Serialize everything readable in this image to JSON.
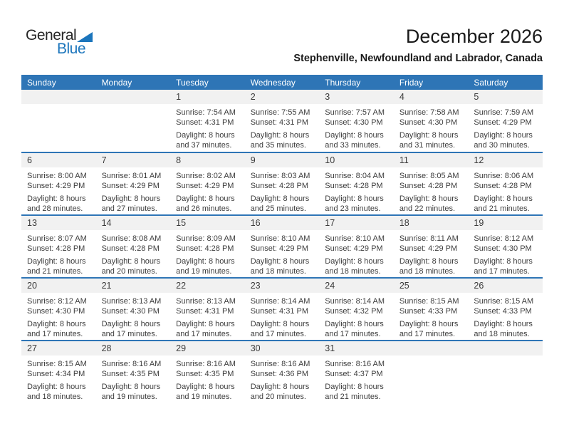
{
  "logo": {
    "line1": "General",
    "line2": "Blue"
  },
  "header": {
    "title": "December 2026",
    "subtitle": "Stephenville, Newfoundland and Labrador, Canada"
  },
  "colors": {
    "header_blue": "#2E75B6",
    "divider_blue": "#2E75B6",
    "band_gray": "#F1F1F1",
    "logo_blue": "#1B75BC",
    "text_dark": "#3d3d3d"
  },
  "calendar": {
    "weekdays": [
      "Sunday",
      "Monday",
      "Tuesday",
      "Wednesday",
      "Thursday",
      "Friday",
      "Saturday"
    ],
    "weeks": [
      {
        "cells": [
          null,
          null,
          {
            "day": "1",
            "sunrise": "Sunrise: 7:54 AM",
            "sunset": "Sunset: 4:31 PM",
            "daylight1": "Daylight: 8 hours",
            "daylight2": "and 37 minutes."
          },
          {
            "day": "2",
            "sunrise": "Sunrise: 7:55 AM",
            "sunset": "Sunset: 4:31 PM",
            "daylight1": "Daylight: 8 hours",
            "daylight2": "and 35 minutes."
          },
          {
            "day": "3",
            "sunrise": "Sunrise: 7:57 AM",
            "sunset": "Sunset: 4:30 PM",
            "daylight1": "Daylight: 8 hours",
            "daylight2": "and 33 minutes."
          },
          {
            "day": "4",
            "sunrise": "Sunrise: 7:58 AM",
            "sunset": "Sunset: 4:30 PM",
            "daylight1": "Daylight: 8 hours",
            "daylight2": "and 31 minutes."
          },
          {
            "day": "5",
            "sunrise": "Sunrise: 7:59 AM",
            "sunset": "Sunset: 4:29 PM",
            "daylight1": "Daylight: 8 hours",
            "daylight2": "and 30 minutes."
          }
        ]
      },
      {
        "cells": [
          {
            "day": "6",
            "sunrise": "Sunrise: 8:00 AM",
            "sunset": "Sunset: 4:29 PM",
            "daylight1": "Daylight: 8 hours",
            "daylight2": "and 28 minutes."
          },
          {
            "day": "7",
            "sunrise": "Sunrise: 8:01 AM",
            "sunset": "Sunset: 4:29 PM",
            "daylight1": "Daylight: 8 hours",
            "daylight2": "and 27 minutes."
          },
          {
            "day": "8",
            "sunrise": "Sunrise: 8:02 AM",
            "sunset": "Sunset: 4:29 PM",
            "daylight1": "Daylight: 8 hours",
            "daylight2": "and 26 minutes."
          },
          {
            "day": "9",
            "sunrise": "Sunrise: 8:03 AM",
            "sunset": "Sunset: 4:28 PM",
            "daylight1": "Daylight: 8 hours",
            "daylight2": "and 25 minutes."
          },
          {
            "day": "10",
            "sunrise": "Sunrise: 8:04 AM",
            "sunset": "Sunset: 4:28 PM",
            "daylight1": "Daylight: 8 hours",
            "daylight2": "and 23 minutes."
          },
          {
            "day": "11",
            "sunrise": "Sunrise: 8:05 AM",
            "sunset": "Sunset: 4:28 PM",
            "daylight1": "Daylight: 8 hours",
            "daylight2": "and 22 minutes."
          },
          {
            "day": "12",
            "sunrise": "Sunrise: 8:06 AM",
            "sunset": "Sunset: 4:28 PM",
            "daylight1": "Daylight: 8 hours",
            "daylight2": "and 21 minutes."
          }
        ]
      },
      {
        "cells": [
          {
            "day": "13",
            "sunrise": "Sunrise: 8:07 AM",
            "sunset": "Sunset: 4:28 PM",
            "daylight1": "Daylight: 8 hours",
            "daylight2": "and 21 minutes."
          },
          {
            "day": "14",
            "sunrise": "Sunrise: 8:08 AM",
            "sunset": "Sunset: 4:28 PM",
            "daylight1": "Daylight: 8 hours",
            "daylight2": "and 20 minutes."
          },
          {
            "day": "15",
            "sunrise": "Sunrise: 8:09 AM",
            "sunset": "Sunset: 4:28 PM",
            "daylight1": "Daylight: 8 hours",
            "daylight2": "and 19 minutes."
          },
          {
            "day": "16",
            "sunrise": "Sunrise: 8:10 AM",
            "sunset": "Sunset: 4:29 PM",
            "daylight1": "Daylight: 8 hours",
            "daylight2": "and 18 minutes."
          },
          {
            "day": "17",
            "sunrise": "Sunrise: 8:10 AM",
            "sunset": "Sunset: 4:29 PM",
            "daylight1": "Daylight: 8 hours",
            "daylight2": "and 18 minutes."
          },
          {
            "day": "18",
            "sunrise": "Sunrise: 8:11 AM",
            "sunset": "Sunset: 4:29 PM",
            "daylight1": "Daylight: 8 hours",
            "daylight2": "and 18 minutes."
          },
          {
            "day": "19",
            "sunrise": "Sunrise: 8:12 AM",
            "sunset": "Sunset: 4:30 PM",
            "daylight1": "Daylight: 8 hours",
            "daylight2": "and 17 minutes."
          }
        ]
      },
      {
        "cells": [
          {
            "day": "20",
            "sunrise": "Sunrise: 8:12 AM",
            "sunset": "Sunset: 4:30 PM",
            "daylight1": "Daylight: 8 hours",
            "daylight2": "and 17 minutes."
          },
          {
            "day": "21",
            "sunrise": "Sunrise: 8:13 AM",
            "sunset": "Sunset: 4:30 PM",
            "daylight1": "Daylight: 8 hours",
            "daylight2": "and 17 minutes."
          },
          {
            "day": "22",
            "sunrise": "Sunrise: 8:13 AM",
            "sunset": "Sunset: 4:31 PM",
            "daylight1": "Daylight: 8 hours",
            "daylight2": "and 17 minutes."
          },
          {
            "day": "23",
            "sunrise": "Sunrise: 8:14 AM",
            "sunset": "Sunset: 4:31 PM",
            "daylight1": "Daylight: 8 hours",
            "daylight2": "and 17 minutes."
          },
          {
            "day": "24",
            "sunrise": "Sunrise: 8:14 AM",
            "sunset": "Sunset: 4:32 PM",
            "daylight1": "Daylight: 8 hours",
            "daylight2": "and 17 minutes."
          },
          {
            "day": "25",
            "sunrise": "Sunrise: 8:15 AM",
            "sunset": "Sunset: 4:33 PM",
            "daylight1": "Daylight: 8 hours",
            "daylight2": "and 17 minutes."
          },
          {
            "day": "26",
            "sunrise": "Sunrise: 8:15 AM",
            "sunset": "Sunset: 4:33 PM",
            "daylight1": "Daylight: 8 hours",
            "daylight2": "and 18 minutes."
          }
        ]
      },
      {
        "cells": [
          {
            "day": "27",
            "sunrise": "Sunrise: 8:15 AM",
            "sunset": "Sunset: 4:34 PM",
            "daylight1": "Daylight: 8 hours",
            "daylight2": "and 18 minutes."
          },
          {
            "day": "28",
            "sunrise": "Sunrise: 8:16 AM",
            "sunset": "Sunset: 4:35 PM",
            "daylight1": "Daylight: 8 hours",
            "daylight2": "and 19 minutes."
          },
          {
            "day": "29",
            "sunrise": "Sunrise: 8:16 AM",
            "sunset": "Sunset: 4:35 PM",
            "daylight1": "Daylight: 8 hours",
            "daylight2": "and 19 minutes."
          },
          {
            "day": "30",
            "sunrise": "Sunrise: 8:16 AM",
            "sunset": "Sunset: 4:36 PM",
            "daylight1": "Daylight: 8 hours",
            "daylight2": "and 20 minutes."
          },
          {
            "day": "31",
            "sunrise": "Sunrise: 8:16 AM",
            "sunset": "Sunset: 4:37 PM",
            "daylight1": "Daylight: 8 hours",
            "daylight2": "and 21 minutes."
          },
          null,
          null
        ]
      }
    ]
  }
}
